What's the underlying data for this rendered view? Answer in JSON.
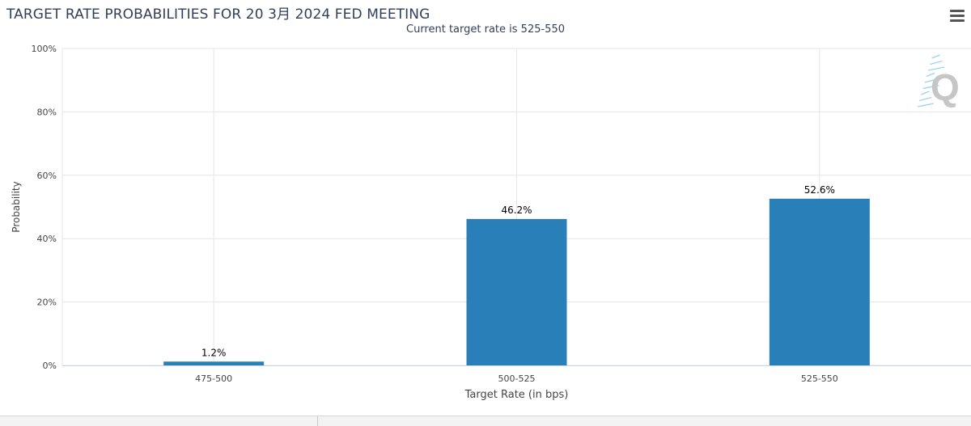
{
  "header": {
    "title": "TARGET RATE PROBABILITIES FOR 20 3月 2024 FED MEETING",
    "subtitle": "Current target rate is 525-550"
  },
  "menu_icon": "hamburger-icon",
  "logo_letter": "Q",
  "colors": {
    "bar": "#2980b9",
    "grid": "#e6e6e6",
    "axis": "#ccd6eb",
    "text": "#333f58",
    "tick_text": "#444444"
  },
  "chart_data": {
    "type": "bar",
    "title": "TARGET RATE PROBABILITIES FOR 20 3月 2024 FED MEETING",
    "subtitle": "Current target rate is 525-550",
    "categories": [
      "475-500",
      "500-525",
      "525-550"
    ],
    "values": [
      1.2,
      46.2,
      52.6
    ],
    "data_labels": [
      "1.2%",
      "46.2%",
      "52.6%"
    ],
    "xlabel": "Target Rate (in bps)",
    "ylabel": "Probability",
    "ylim": [
      0,
      100
    ],
    "yticks": [
      0,
      20,
      40,
      60,
      80,
      100
    ],
    "ytick_labels": [
      "0%",
      "20%",
      "40%",
      "60%",
      "80%",
      "100%"
    ],
    "grid": true,
    "legend": "none"
  }
}
